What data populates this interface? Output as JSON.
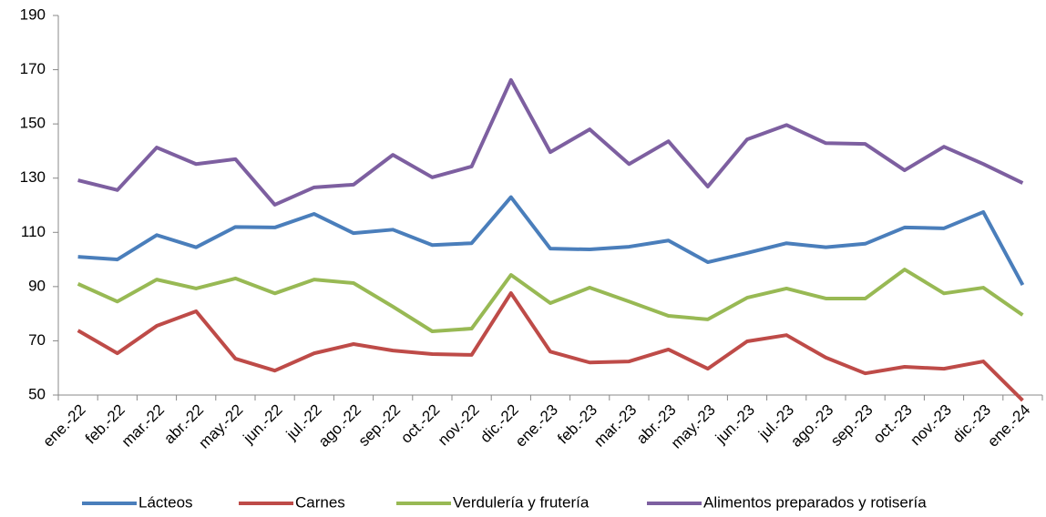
{
  "chart_data": {
    "type": "line",
    "categories": [
      "ene.-22",
      "feb.-22",
      "mar.-22",
      "abr.-22",
      "may.-22",
      "jun.-22",
      "jul.-22",
      "ago.-22",
      "sep.-22",
      "oct.-22",
      "nov.-22",
      "dic.-22",
      "ene.-23",
      "feb.-23",
      "mar.-23",
      "abr.-23",
      "may.-23",
      "jun.-23",
      "jul.-23",
      "ago.-23",
      "sep.-23",
      "oct.-23",
      "nov.-23",
      "dic.-23",
      "ene.-24"
    ],
    "series": [
      {
        "name": "Lácteos",
        "color": "#4a7ebb",
        "values": [
          101,
          100,
          109,
          104.5,
          112,
          111.8,
          116.8,
          109.7,
          111,
          105.3,
          106,
          123,
          104,
          103.7,
          104.7,
          107,
          99,
          102.4,
          106,
          104.5,
          105.8,
          111.8,
          111.5,
          117.5,
          90.6
        ]
      },
      {
        "name": "Carnes",
        "color": "#be4b48",
        "values": [
          73.8,
          65.4,
          75.5,
          80.9,
          63.4,
          59,
          65.4,
          68.8,
          66.4,
          65.1,
          64.8,
          87.6,
          66,
          62,
          62.4,
          66.8,
          59.7,
          69.8,
          72.1,
          63.8,
          58,
          60.4,
          59.7,
          62.4,
          48
        ]
      },
      {
        "name": "Verdulería y frutería",
        "color": "#98b954",
        "values": [
          91,
          84.5,
          92.6,
          89.3,
          93,
          87.5,
          92.6,
          91.3,
          82.6,
          73.5,
          74.5,
          94.3,
          83.9,
          89.6,
          84.5,
          79.2,
          77.9,
          85.9,
          89.3,
          85.6,
          85.6,
          96.3,
          87.5,
          89.6,
          79.5
        ]
      },
      {
        "name": "Alimentos preparados y rotisería",
        "color": "#7d5fa0",
        "values": [
          129.2,
          125.6,
          141.3,
          135.2,
          137,
          120.2,
          126.6,
          127.6,
          138.6,
          130.3,
          134.3,
          166.2,
          139.6,
          148,
          135.2,
          143.6,
          126.9,
          144.3,
          149.6,
          142.9,
          142.6,
          132.9,
          141.6,
          135.2,
          128.2
        ]
      }
    ],
    "ylim": [
      50,
      190
    ],
    "yticks": [
      50,
      70,
      90,
      110,
      130,
      150,
      170,
      190
    ],
    "legend": "bottom"
  }
}
